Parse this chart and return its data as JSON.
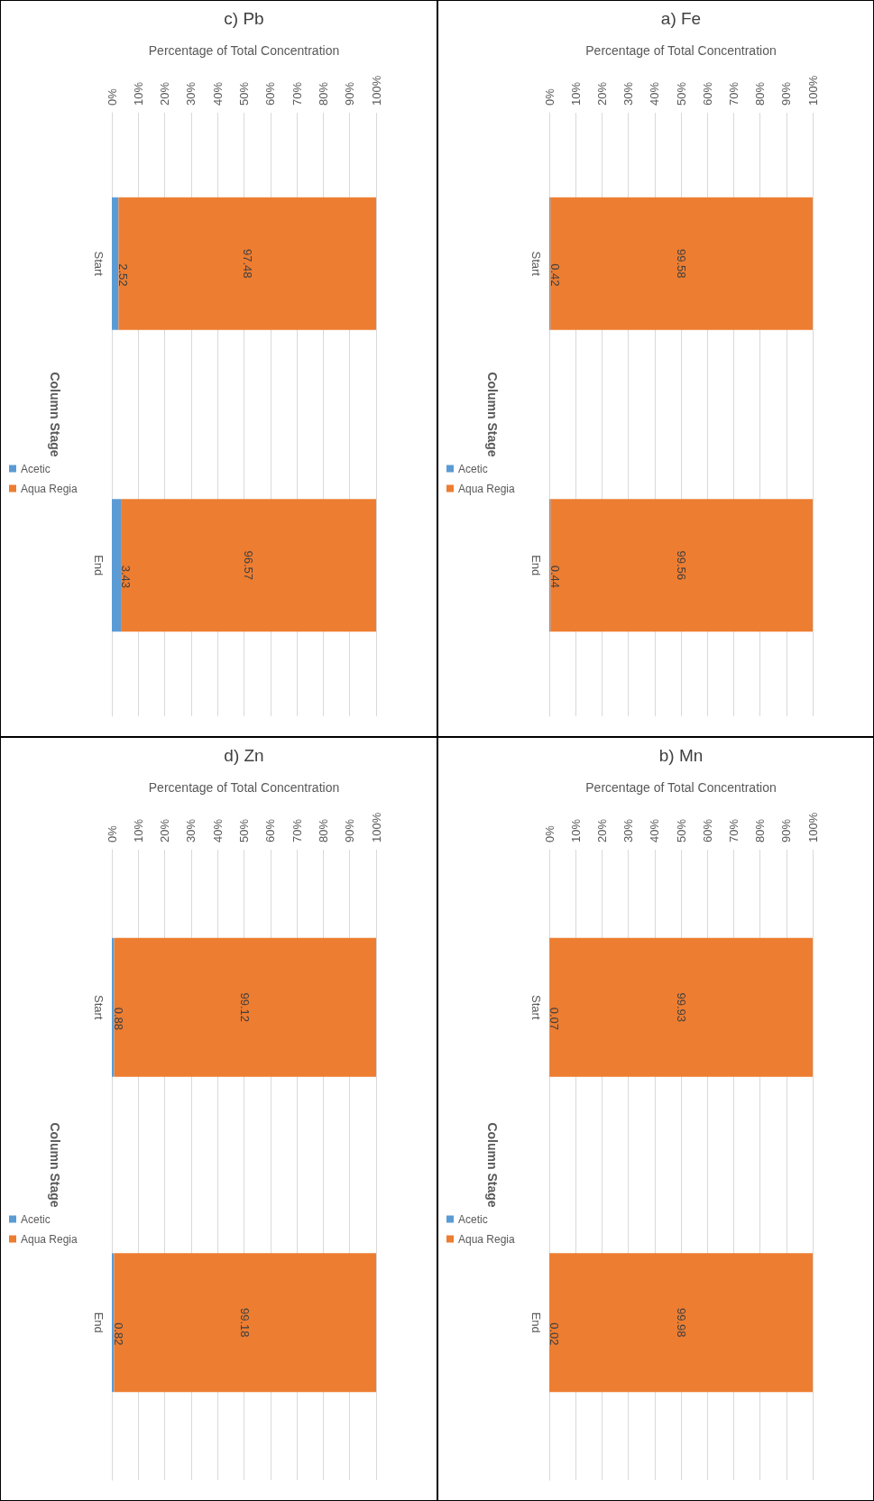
{
  "chart_data": [
    {
      "type": "bar",
      "stacked": true,
      "orientation": "horizontal",
      "title": "c) Pb",
      "ylabel": "Column Stage",
      "xlabel": "Percentage of Total Concentration",
      "categories": [
        "Start",
        "End"
      ],
      "series": [
        {
          "name": "Acetic",
          "color": "#5b9bd5",
          "values": [
            2.52,
            3.43
          ]
        },
        {
          "name": "Aqua Regia",
          "color": "#ed7d31",
          "values": [
            97.48,
            96.57
          ]
        }
      ],
      "xlim": [
        0,
        100
      ],
      "xticks": [
        {
          "value": 0,
          "label": "0%"
        },
        {
          "value": 10,
          "label": "10%"
        },
        {
          "value": 20,
          "label": "20%"
        },
        {
          "value": 30,
          "label": "30%"
        },
        {
          "value": 40,
          "label": "40%"
        },
        {
          "value": 50,
          "label": "50%"
        },
        {
          "value": 60,
          "label": "60%"
        },
        {
          "value": 70,
          "label": "70%"
        },
        {
          "value": 80,
          "label": "80%"
        },
        {
          "value": 90,
          "label": "90%"
        },
        {
          "value": 100,
          "label": "100%"
        }
      ],
      "grid": "x",
      "legend": "left",
      "data_labels": true
    },
    {
      "type": "bar",
      "stacked": true,
      "orientation": "horizontal",
      "title": "a) Fe",
      "ylabel": "Column Stage",
      "xlabel": "Percentage of Total Concentration",
      "categories": [
        "Start",
        "End"
      ],
      "series": [
        {
          "name": "Acetic",
          "color": "#5b9bd5",
          "values": [
            0.42,
            0.44
          ]
        },
        {
          "name": "Aqua Regia",
          "color": "#ed7d31",
          "values": [
            99.58,
            99.56
          ]
        }
      ],
      "xlim": [
        0,
        100
      ],
      "xticks": [
        {
          "value": 0,
          "label": "0%"
        },
        {
          "value": 10,
          "label": "10%"
        },
        {
          "value": 20,
          "label": "20%"
        },
        {
          "value": 30,
          "label": "30%"
        },
        {
          "value": 40,
          "label": "40%"
        },
        {
          "value": 50,
          "label": "50%"
        },
        {
          "value": 60,
          "label": "60%"
        },
        {
          "value": 70,
          "label": "70%"
        },
        {
          "value": 80,
          "label": "80%"
        },
        {
          "value": 90,
          "label": "90%"
        },
        {
          "value": 100,
          "label": "100%"
        }
      ],
      "grid": "x",
      "legend": "left",
      "data_labels": true
    },
    {
      "type": "bar",
      "stacked": true,
      "orientation": "horizontal",
      "title": "d) Zn",
      "ylabel": "Column Stage",
      "xlabel": "Percentage of Total Concentration",
      "categories": [
        "Start",
        "End"
      ],
      "series": [
        {
          "name": "Acetic",
          "color": "#5b9bd5",
          "values": [
            0.88,
            0.82
          ]
        },
        {
          "name": "Aqua Regia",
          "color": "#ed7d31",
          "values": [
            99.12,
            99.18
          ]
        }
      ],
      "xlim": [
        0,
        100
      ],
      "xticks": [
        {
          "value": 0,
          "label": "0%"
        },
        {
          "value": 10,
          "label": "10%"
        },
        {
          "value": 20,
          "label": "20%"
        },
        {
          "value": 30,
          "label": "30%"
        },
        {
          "value": 40,
          "label": "40%"
        },
        {
          "value": 50,
          "label": "50%"
        },
        {
          "value": 60,
          "label": "60%"
        },
        {
          "value": 70,
          "label": "70%"
        },
        {
          "value": 80,
          "label": "80%"
        },
        {
          "value": 90,
          "label": "90%"
        },
        {
          "value": 100,
          "label": "100%"
        }
      ],
      "grid": "x",
      "legend": "left",
      "data_labels": true
    },
    {
      "type": "bar",
      "stacked": true,
      "orientation": "horizontal",
      "title": "b) Mn",
      "ylabel": "Column Stage",
      "xlabel": "Percentage of Total Concentration",
      "categories": [
        "Start",
        "End"
      ],
      "series": [
        {
          "name": "Acetic",
          "color": "#5b9bd5",
          "values": [
            0.07,
            0.02
          ]
        },
        {
          "name": "Aqua Regia",
          "color": "#ed7d31",
          "values": [
            99.93,
            99.98
          ]
        }
      ],
      "xlim": [
        0,
        100
      ],
      "xticks": [
        {
          "value": 0,
          "label": "0%"
        },
        {
          "value": 10,
          "label": "10%"
        },
        {
          "value": 20,
          "label": "20%"
        },
        {
          "value": 30,
          "label": "30%"
        },
        {
          "value": 40,
          "label": "40%"
        },
        {
          "value": 50,
          "label": "50%"
        },
        {
          "value": 60,
          "label": "60%"
        },
        {
          "value": 70,
          "label": "70%"
        },
        {
          "value": 80,
          "label": "80%"
        },
        {
          "value": 90,
          "label": "90%"
        },
        {
          "value": 100,
          "label": "100%"
        }
      ],
      "grid": "x",
      "legend": "left",
      "data_labels": true
    }
  ]
}
